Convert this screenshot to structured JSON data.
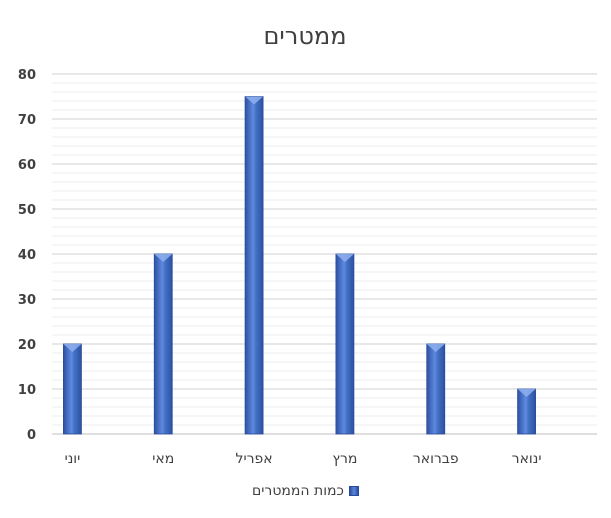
{
  "chart_data": {
    "type": "bar",
    "title": "ממטרים",
    "categories": [
      "יוני",
      "מאי",
      "אפריל",
      "מרץ",
      "פברואר",
      "ינואר"
    ],
    "series": [
      {
        "name": "כמות הממטרים",
        "values": [
          20,
          40,
          75,
          40,
          20,
          10
        ]
      }
    ],
    "xlabel": "",
    "ylabel": "",
    "ylim": [
      0,
      80
    ],
    "yticks": [
      0,
      10,
      20,
      30,
      40,
      50,
      60,
      70,
      80
    ],
    "grid": true,
    "legend_position": "bottom",
    "colors": {
      "bar": "#4472c4",
      "bar_dark": "#2a4fa0",
      "bar_light": "#6b93e0",
      "grid": "#d9d9d9",
      "text": "#404040"
    }
  }
}
